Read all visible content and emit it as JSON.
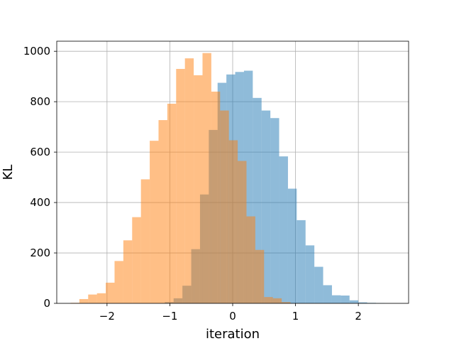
{
  "chart_data": {
    "type": "bar",
    "subtype": "overlapping-histogram",
    "title": "",
    "xlabel": "iteration",
    "ylabel": "KL",
    "xlim": [
      -2.8,
      2.8
    ],
    "ylim": [
      0,
      1040
    ],
    "x_ticks": [
      -2,
      -1,
      0,
      1,
      2
    ],
    "x_tick_labels": [
      "−2",
      "−1",
      "0",
      "1",
      "2"
    ],
    "y_ticks": [
      0,
      200,
      400,
      600,
      800,
      1000
    ],
    "y_tick_labels": [
      "0",
      "200",
      "400",
      "600",
      "800",
      "1000"
    ],
    "grid": true,
    "legend": "none",
    "series": [
      {
        "color": "#1f77b4",
        "alpha": 0.5,
        "bins": [
          {
            "x0": -1.08,
            "x1": -0.94,
            "value": 5
          },
          {
            "x0": -0.94,
            "x1": -0.8,
            "value": 20
          },
          {
            "x0": -0.8,
            "x1": -0.66,
            "value": 70
          },
          {
            "x0": -0.66,
            "x1": -0.52,
            "value": 215
          },
          {
            "x0": -0.52,
            "x1": -0.38,
            "value": 432
          },
          {
            "x0": -0.38,
            "x1": -0.24,
            "value": 688
          },
          {
            "x0": -0.24,
            "x1": -0.1,
            "value": 875
          },
          {
            "x0": -0.1,
            "x1": 0.04,
            "value": 908
          },
          {
            "x0": 0.04,
            "x1": 0.18,
            "value": 918
          },
          {
            "x0": 0.18,
            "x1": 0.32,
            "value": 923
          },
          {
            "x0": 0.32,
            "x1": 0.46,
            "value": 815
          },
          {
            "x0": 0.46,
            "x1": 0.6,
            "value": 765
          },
          {
            "x0": 0.6,
            "x1": 0.74,
            "value": 735
          },
          {
            "x0": 0.74,
            "x1": 0.88,
            "value": 583
          },
          {
            "x0": 0.88,
            "x1": 1.02,
            "value": 455
          },
          {
            "x0": 1.02,
            "x1": 1.16,
            "value": 330
          },
          {
            "x0": 1.16,
            "x1": 1.3,
            "value": 230
          },
          {
            "x0": 1.3,
            "x1": 1.44,
            "value": 145
          },
          {
            "x0": 1.44,
            "x1": 1.58,
            "value": 72
          },
          {
            "x0": 1.58,
            "x1": 1.72,
            "value": 32
          },
          {
            "x0": 1.72,
            "x1": 1.86,
            "value": 31
          },
          {
            "x0": 1.86,
            "x1": 2.0,
            "value": 12
          },
          {
            "x0": 2.0,
            "x1": 2.14,
            "value": 4
          },
          {
            "x0": 2.14,
            "x1": 2.28,
            "value": 2
          },
          {
            "x0": 2.28,
            "x1": 2.42,
            "value": 1
          }
        ]
      },
      {
        "color": "#ff7f0e",
        "alpha": 0.5,
        "bins": [
          {
            "x0": -2.58,
            "x1": -2.44,
            "value": 2
          },
          {
            "x0": -2.44,
            "x1": -2.3,
            "value": 17
          },
          {
            "x0": -2.3,
            "x1": -2.16,
            "value": 35
          },
          {
            "x0": -2.16,
            "x1": -2.02,
            "value": 40
          },
          {
            "x0": -2.02,
            "x1": -1.88,
            "value": 82
          },
          {
            "x0": -1.88,
            "x1": -1.74,
            "value": 168
          },
          {
            "x0": -1.74,
            "x1": -1.6,
            "value": 250
          },
          {
            "x0": -1.6,
            "x1": -1.46,
            "value": 342
          },
          {
            "x0": -1.46,
            "x1": -1.32,
            "value": 492
          },
          {
            "x0": -1.32,
            "x1": -1.18,
            "value": 645
          },
          {
            "x0": -1.18,
            "x1": -1.04,
            "value": 727
          },
          {
            "x0": -1.04,
            "x1": -0.9,
            "value": 792
          },
          {
            "x0": -0.9,
            "x1": -0.76,
            "value": 930
          },
          {
            "x0": -0.76,
            "x1": -0.62,
            "value": 972
          },
          {
            "x0": -0.62,
            "x1": -0.48,
            "value": 905
          },
          {
            "x0": -0.48,
            "x1": -0.34,
            "value": 993
          },
          {
            "x0": -0.34,
            "x1": -0.2,
            "value": 840
          },
          {
            "x0": -0.2,
            "x1": -0.06,
            "value": 765
          },
          {
            "x0": -0.06,
            "x1": 0.08,
            "value": 647
          },
          {
            "x0": 0.08,
            "x1": 0.22,
            "value": 565
          },
          {
            "x0": 0.22,
            "x1": 0.36,
            "value": 345
          },
          {
            "x0": 0.36,
            "x1": 0.5,
            "value": 212
          },
          {
            "x0": 0.5,
            "x1": 0.64,
            "value": 25
          },
          {
            "x0": 0.64,
            "x1": 0.78,
            "value": 20
          },
          {
            "x0": 0.78,
            "x1": 0.92,
            "value": 5
          }
        ]
      }
    ]
  }
}
